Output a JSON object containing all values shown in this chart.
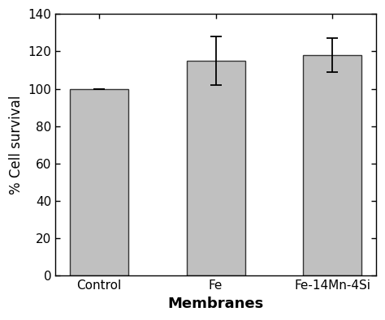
{
  "categories": [
    "Control",
    "Fe",
    "Fe-14Mn-4Si"
  ],
  "values": [
    100,
    115,
    118
  ],
  "errors": [
    0,
    13,
    9
  ],
  "bar_color": "#c0c0c0",
  "bar_edgecolor": "#333333",
  "ylim": [
    0,
    140
  ],
  "yticks": [
    0,
    20,
    40,
    60,
    80,
    100,
    120,
    140
  ],
  "xlabel": "Membranes",
  "ylabel": "% Cell survival",
  "xlabel_fontsize": 13,
  "ylabel_fontsize": 12,
  "tick_fontsize": 11,
  "bar_width": 0.5,
  "error_capsize": 5,
  "error_linewidth": 1.3
}
